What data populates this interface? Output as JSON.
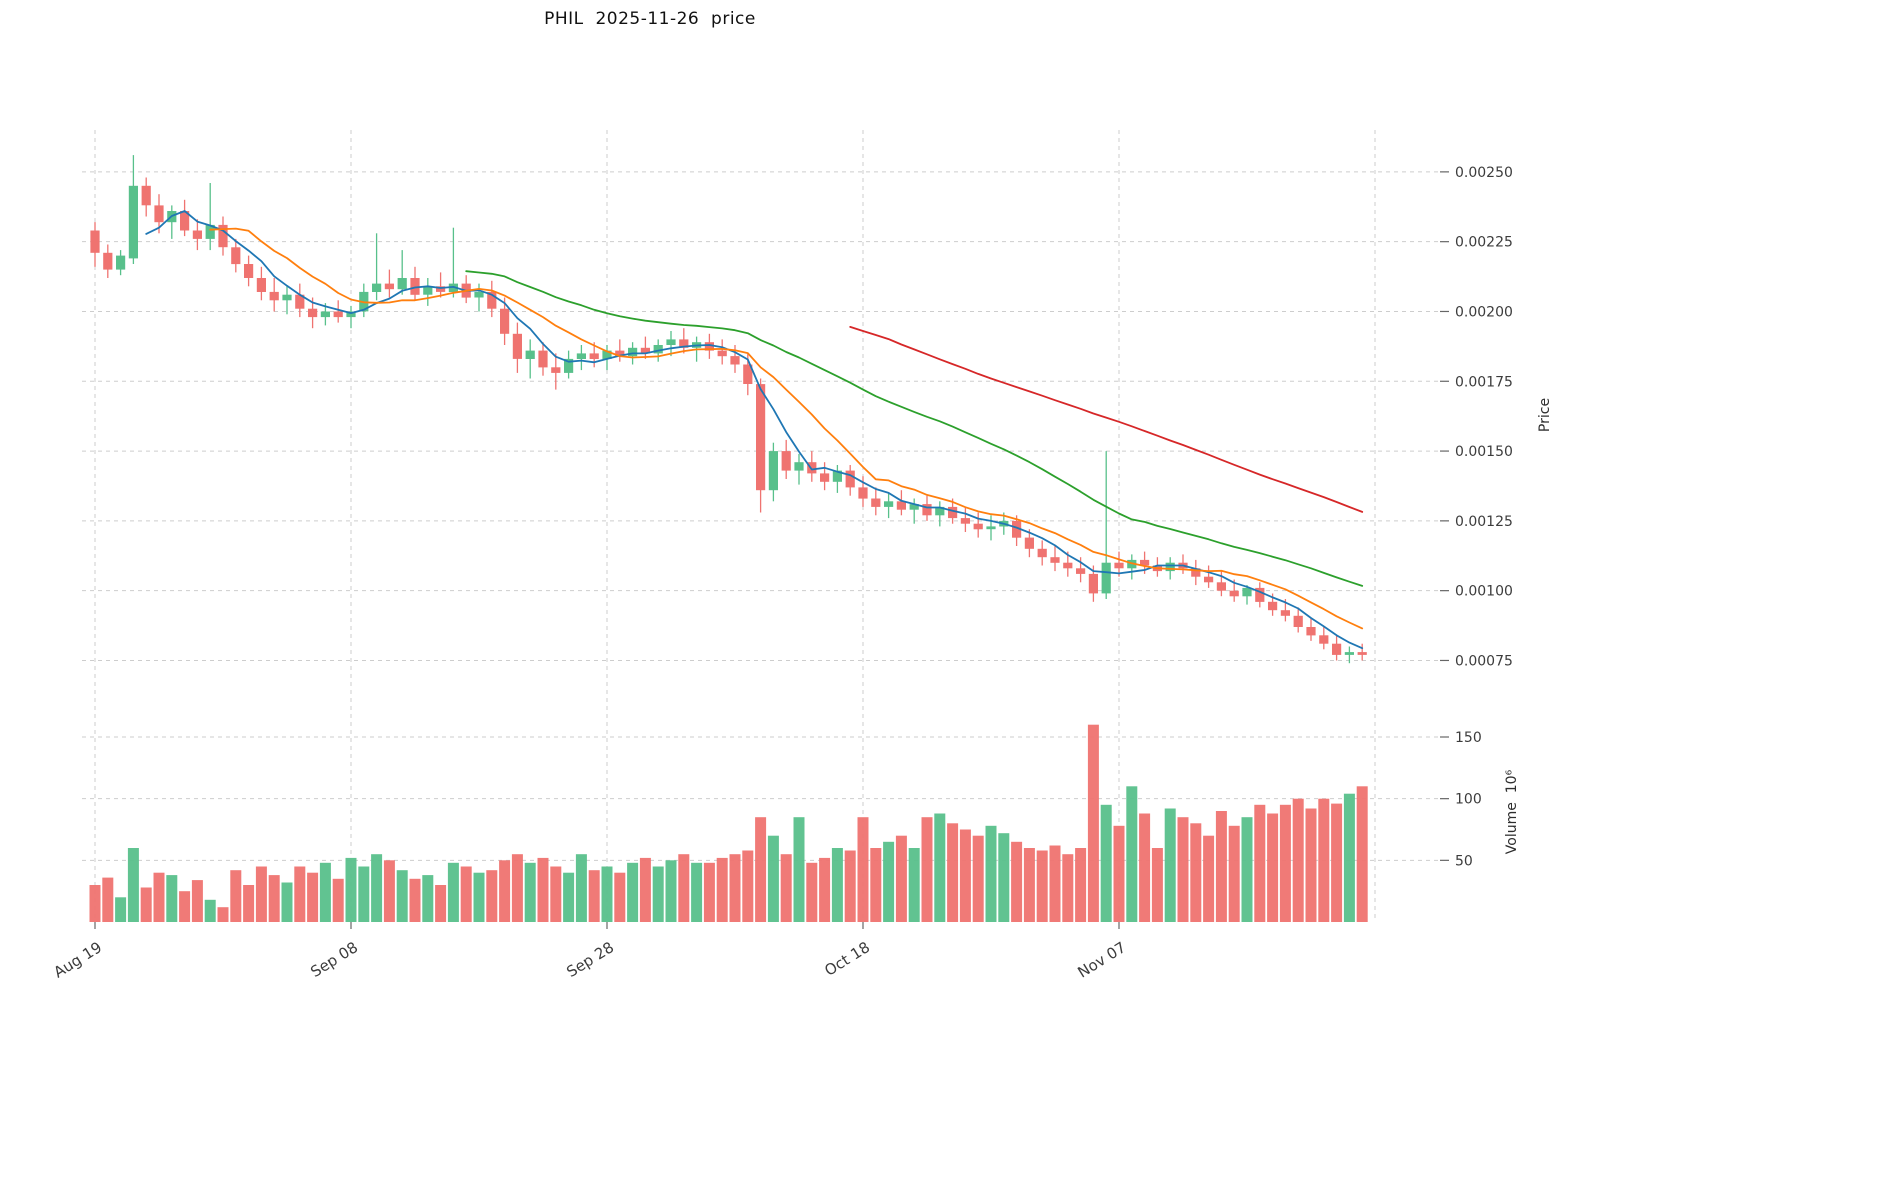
{
  "title": "PHIL  2025-11-26  price",
  "chart_data": {
    "type": "candlestick",
    "title": "PHIL  2025-11-26  price",
    "grid": true,
    "legend": "none",
    "price_scale": 1e-05,
    "volume_unit": 1000000,
    "x_ticks": [
      {
        "index": 0,
        "label": "Aug 19"
      },
      {
        "index": 20,
        "label": "Sep 08"
      },
      {
        "index": 40,
        "label": "Sep 28"
      },
      {
        "index": 60,
        "label": "Oct 18"
      },
      {
        "index": 80,
        "label": "Nov 07"
      },
      {
        "index": 100,
        "label": ""
      }
    ],
    "price_axis": {
      "label": "Price",
      "side": "right",
      "ticks": [
        0.00075,
        0.001,
        0.00125,
        0.0015,
        0.00175,
        0.002,
        0.00225,
        0.0025
      ],
      "range": [
        0.00068,
        0.00265
      ],
      "decimals": 5
    },
    "volume_axis": {
      "label": "Volume  10⁶",
      "side": "right",
      "ticks": [
        50,
        100,
        150
      ],
      "range": [
        0,
        180
      ]
    },
    "moving_averages": [
      {
        "name": "ma-fast",
        "window": 5,
        "color": "#1f77b4"
      },
      {
        "name": "ma-medium",
        "window": 10,
        "color": "#ff7f0e"
      },
      {
        "name": "ma-slow",
        "window": 30,
        "color": "#2ca02c"
      },
      {
        "name": "ma-slowest",
        "window": 60,
        "color": "#d62728"
      }
    ],
    "colors": {
      "up": "#58c08b",
      "down": "#ef7370",
      "grid": "#cdcdcd",
      "tick_mark": "#666666",
      "tick_text": "#3c3c3c",
      "title_text": "#111111"
    },
    "candles_format": [
      "open",
      "high",
      "low",
      "close",
      "volume"
    ],
    "candles": [
      [
        229,
        232,
        216,
        221,
        30
      ],
      [
        221,
        224,
        212,
        215,
        36
      ],
      [
        215,
        222,
        213,
        220,
        20
      ],
      [
        219,
        256,
        217,
        245,
        60
      ],
      [
        245,
        248,
        234,
        238,
        28
      ],
      [
        238,
        242,
        228,
        232,
        40
      ],
      [
        232,
        238,
        226,
        236,
        38
      ],
      [
        236,
        240,
        227,
        229,
        25
      ],
      [
        229,
        233,
        222,
        226,
        34
      ],
      [
        226,
        246,
        222,
        231,
        18
      ],
      [
        231,
        234,
        220,
        223,
        12
      ],
      [
        223,
        226,
        214,
        217,
        42
      ],
      [
        217,
        220,
        209,
        212,
        30
      ],
      [
        212,
        216,
        204,
        207,
        45
      ],
      [
        207,
        212,
        200,
        204,
        38
      ],
      [
        204,
        209,
        199,
        206,
        32
      ],
      [
        206,
        210,
        198,
        201,
        45
      ],
      [
        201,
        205,
        194,
        198,
        40
      ],
      [
        198,
        203,
        195,
        200,
        48
      ],
      [
        200,
        204,
        196,
        198,
        35
      ],
      [
        198,
        202,
        194,
        200,
        52
      ],
      [
        200,
        210,
        198,
        207,
        45
      ],
      [
        207,
        228,
        204,
        210,
        55
      ],
      [
        210,
        215,
        205,
        208,
        50
      ],
      [
        208,
        222,
        206,
        212,
        42
      ],
      [
        212,
        216,
        204,
        206,
        35
      ],
      [
        206,
        212,
        202,
        209,
        38
      ],
      [
        209,
        214,
        205,
        207,
        30
      ],
      [
        207,
        230,
        205,
        210,
        48
      ],
      [
        210,
        213,
        203,
        205,
        45
      ],
      [
        205,
        210,
        200,
        207,
        40
      ],
      [
        207,
        211,
        198,
        201,
        42
      ],
      [
        201,
        205,
        188,
        192,
        50
      ],
      [
        192,
        196,
        178,
        183,
        55
      ],
      [
        183,
        190,
        176,
        186,
        48
      ],
      [
        186,
        189,
        177,
        180,
        52
      ],
      [
        180,
        185,
        172,
        178,
        45
      ],
      [
        178,
        186,
        176,
        183,
        40
      ],
      [
        183,
        188,
        179,
        185,
        55
      ],
      [
        185,
        189,
        180,
        183,
        42
      ],
      [
        183,
        188,
        179,
        186,
        45
      ],
      [
        186,
        190,
        182,
        184,
        40
      ],
      [
        184,
        189,
        181,
        187,
        48
      ],
      [
        187,
        191,
        183,
        185,
        52
      ],
      [
        185,
        190,
        182,
        188,
        45
      ],
      [
        188,
        193,
        184,
        190,
        50
      ],
      [
        190,
        194,
        185,
        187,
        55
      ],
      [
        187,
        191,
        182,
        189,
        48
      ],
      [
        189,
        192,
        183,
        186,
        48
      ],
      [
        186,
        190,
        181,
        184,
        52
      ],
      [
        184,
        188,
        178,
        181,
        55
      ],
      [
        181,
        185,
        170,
        174,
        58
      ],
      [
        174,
        176,
        128,
        136,
        85
      ],
      [
        136,
        153,
        132,
        150,
        70
      ],
      [
        150,
        154,
        140,
        143,
        55
      ],
      [
        143,
        149,
        138,
        146,
        85
      ],
      [
        146,
        150,
        139,
        142,
        48
      ],
      [
        142,
        146,
        136,
        139,
        52
      ],
      [
        139,
        145,
        135,
        143,
        60
      ],
      [
        143,
        145,
        134,
        137,
        58
      ],
      [
        137,
        141,
        130,
        133,
        85
      ],
      [
        133,
        137,
        127,
        130,
        60
      ],
      [
        130,
        135,
        126,
        132,
        65
      ],
      [
        132,
        136,
        127,
        129,
        70
      ],
      [
        129,
        133,
        124,
        131,
        60
      ],
      [
        131,
        134,
        125,
        127,
        85
      ],
      [
        127,
        132,
        123,
        130,
        88
      ],
      [
        130,
        133,
        124,
        126,
        80
      ],
      [
        126,
        130,
        121,
        124,
        75
      ],
      [
        124,
        128,
        119,
        122,
        70
      ],
      [
        122,
        127,
        118,
        123,
        78
      ],
      [
        123,
        128,
        120,
        125,
        72
      ],
      [
        125,
        127,
        116,
        119,
        65
      ],
      [
        119,
        122,
        112,
        115,
        60
      ],
      [
        115,
        118,
        109,
        112,
        58
      ],
      [
        112,
        116,
        107,
        110,
        62
      ],
      [
        110,
        114,
        105,
        108,
        55
      ],
      [
        108,
        112,
        103,
        106,
        60
      ],
      [
        106,
        109,
        96,
        99,
        160
      ],
      [
        99,
        150,
        97,
        110,
        95
      ],
      [
        110,
        114,
        105,
        108,
        78
      ],
      [
        108,
        113,
        104,
        111,
        110
      ],
      [
        111,
        114,
        106,
        109,
        88
      ],
      [
        109,
        112,
        105,
        107,
        60
      ],
      [
        107,
        112,
        104,
        110,
        92
      ],
      [
        110,
        113,
        106,
        108,
        85
      ],
      [
        108,
        111,
        102,
        105,
        80
      ],
      [
        105,
        109,
        101,
        103,
        70
      ],
      [
        103,
        107,
        98,
        100,
        90
      ],
      [
        100,
        104,
        96,
        98,
        78
      ],
      [
        98,
        102,
        95,
        101,
        85
      ],
      [
        101,
        103,
        94,
        96,
        95
      ],
      [
        96,
        99,
        91,
        93,
        88
      ],
      [
        93,
        97,
        89,
        91,
        95
      ],
      [
        91,
        94,
        85,
        87,
        100
      ],
      [
        87,
        90,
        82,
        84,
        92
      ],
      [
        84,
        87,
        79,
        81,
        100
      ],
      [
        81,
        84,
        75,
        77,
        96
      ],
      [
        77,
        80,
        74,
        78,
        104
      ],
      [
        78,
        81,
        75,
        77,
        110
      ]
    ]
  }
}
